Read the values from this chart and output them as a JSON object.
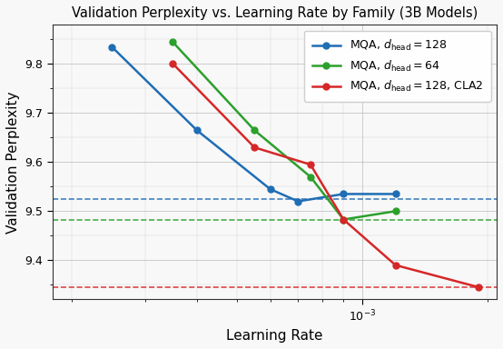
{
  "title": "Validation Perplexity vs. Learning Rate by Family (3B Models)",
  "xlabel": "Learning Rate",
  "ylabel": "Validation Perplexity",
  "blue_x": [
    0.00025,
    0.0004,
    0.0006,
    0.0007,
    0.0009,
    0.0012
  ],
  "blue_y": [
    9.835,
    9.665,
    9.545,
    9.52,
    9.535,
    9.535
  ],
  "blue_label": "MQA, $d_{\\mathrm{head}} = 128$",
  "blue_color": "#1f6db5",
  "blue_hline": 9.525,
  "green_x": [
    0.00035,
    0.00055,
    0.00075,
    0.0009,
    0.0012
  ],
  "green_y": [
    9.845,
    9.665,
    9.57,
    9.483,
    9.5
  ],
  "green_label": "MQA, $d_{\\mathrm{head}} = 64$",
  "green_color": "#2ca02c",
  "green_hline": 9.483,
  "red_x": [
    0.00035,
    0.00055,
    0.00075,
    0.0009,
    0.0012,
    0.0019
  ],
  "red_y": [
    9.801,
    9.63,
    9.595,
    9.483,
    9.39,
    9.345
  ],
  "red_label": "MQA, $d_{\\mathrm{head}} = 128$, CLA2",
  "red_color": "#d62728",
  "red_hline": 9.345,
  "xlim": [
    0.00018,
    0.0021
  ],
  "ylim": [
    9.32,
    9.88
  ],
  "figsize": [
    5.54,
    3.84
  ],
  "dpi": 100,
  "bg_color": "#f8f8f8"
}
